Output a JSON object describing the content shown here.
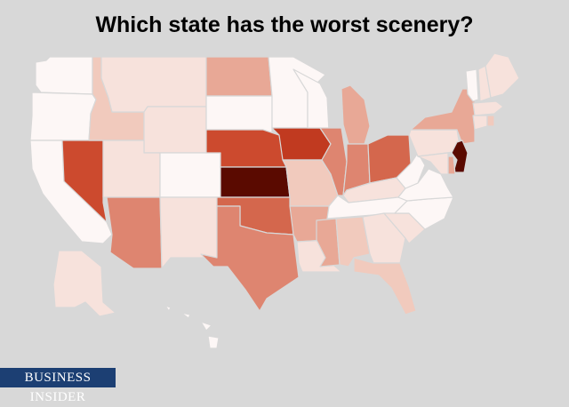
{
  "title": "Which state has the worst scenery?",
  "brand": "Business Insider",
  "scale_colors": {
    "0": "#fdf7f6",
    "1": "#f7e2dc",
    "2": "#f1cabd",
    "3": "#e8a896",
    "4": "#de8570",
    "5": "#d4674d",
    "6": "#cc4a2e",
    "7": "#c13a20",
    "8": "#8a1d08",
    "9": "#5a0a00"
  },
  "states": [
    {
      "id": "WA",
      "level": 0
    },
    {
      "id": "OR",
      "level": 0
    },
    {
      "id": "CA",
      "level": 0
    },
    {
      "id": "NV",
      "level": 6
    },
    {
      "id": "ID",
      "level": 2
    },
    {
      "id": "MT",
      "level": 1
    },
    {
      "id": "WY",
      "level": 1
    },
    {
      "id": "UT",
      "level": 1
    },
    {
      "id": "AZ",
      "level": 4
    },
    {
      "id": "CO",
      "level": 0
    },
    {
      "id": "NM",
      "level": 1
    },
    {
      "id": "ND",
      "level": 3
    },
    {
      "id": "SD",
      "level": 0
    },
    {
      "id": "NE",
      "level": 6
    },
    {
      "id": "KS",
      "level": 9
    },
    {
      "id": "OK",
      "level": 5
    },
    {
      "id": "TX",
      "level": 4
    },
    {
      "id": "MN",
      "level": 0
    },
    {
      "id": "IA",
      "level": 7
    },
    {
      "id": "MO",
      "level": 2
    },
    {
      "id": "AR",
      "level": 3
    },
    {
      "id": "LA",
      "level": 1
    },
    {
      "id": "WI",
      "level": 0
    },
    {
      "id": "IL",
      "level": 4
    },
    {
      "id": "MI",
      "level": 3
    },
    {
      "id": "IN",
      "level": 4
    },
    {
      "id": "OH",
      "level": 5
    },
    {
      "id": "KY",
      "level": 1
    },
    {
      "id": "TN",
      "level": 0
    },
    {
      "id": "MS",
      "level": 3
    },
    {
      "id": "AL",
      "level": 2
    },
    {
      "id": "GA",
      "level": 1
    },
    {
      "id": "FL",
      "level": 2
    },
    {
      "id": "SC",
      "level": 1
    },
    {
      "id": "NC",
      "level": 0
    },
    {
      "id": "VA",
      "level": 0
    },
    {
      "id": "WV",
      "level": 0
    },
    {
      "id": "PA",
      "level": 1
    },
    {
      "id": "NY",
      "level": 3
    },
    {
      "id": "VT",
      "level": 0
    },
    {
      "id": "NH",
      "level": 1
    },
    {
      "id": "ME",
      "level": 1
    },
    {
      "id": "MA",
      "level": 1
    },
    {
      "id": "CT",
      "level": 1
    },
    {
      "id": "RI",
      "level": 2
    },
    {
      "id": "NJ",
      "level": 9
    },
    {
      "id": "DE",
      "level": 3
    },
    {
      "id": "MD",
      "level": 1
    },
    {
      "id": "AK",
      "level": 1
    },
    {
      "id": "HI",
      "level": 0
    }
  ]
}
